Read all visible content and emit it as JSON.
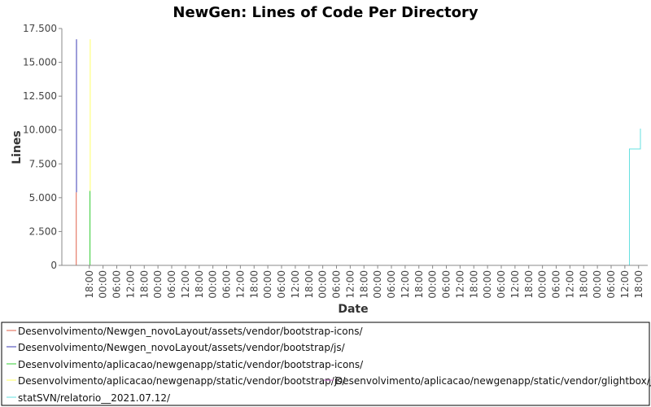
{
  "chart_data": {
    "type": "line",
    "title": "NewGen: Lines of Code Per Directory",
    "xlabel": "Date",
    "ylabel": "Lines",
    "ylim": [
      0,
      17500
    ],
    "y_ticks": [
      {
        "value": 0,
        "label": "0"
      },
      {
        "value": 2500,
        "label": "2.500"
      },
      {
        "value": 5000,
        "label": "5.000"
      },
      {
        "value": 7500,
        "label": "7.500"
      },
      {
        "value": 10000,
        "label": "10.000"
      },
      {
        "value": 12500,
        "label": "12.500"
      },
      {
        "value": 15000,
        "label": "15.000"
      },
      {
        "value": 17500,
        "label": "17.500"
      }
    ],
    "x_range": [
      0,
      256
    ],
    "x_ticks": [
      {
        "x": 12,
        "label": "18:00"
      },
      {
        "x": 18,
        "label": "00:00"
      },
      {
        "x": 24,
        "label": "06:00"
      },
      {
        "x": 30,
        "label": "12:00"
      },
      {
        "x": 36,
        "label": "18:00"
      },
      {
        "x": 42,
        "label": "00:00"
      },
      {
        "x": 48,
        "label": "06:00"
      },
      {
        "x": 54,
        "label": "12:00"
      },
      {
        "x": 60,
        "label": "18:00"
      },
      {
        "x": 66,
        "label": "00:00"
      },
      {
        "x": 72,
        "label": "06:00"
      },
      {
        "x": 78,
        "label": "12:00"
      },
      {
        "x": 84,
        "label": "18:00"
      },
      {
        "x": 90,
        "label": "00:00"
      },
      {
        "x": 96,
        "label": "06:00"
      },
      {
        "x": 102,
        "label": "12:00"
      },
      {
        "x": 108,
        "label": "18:00"
      },
      {
        "x": 114,
        "label": "00:00"
      },
      {
        "x": 120,
        "label": "06:00"
      },
      {
        "x": 126,
        "label": "12:00"
      },
      {
        "x": 132,
        "label": "18:00"
      },
      {
        "x": 138,
        "label": "00:00"
      },
      {
        "x": 144,
        "label": "06:00"
      },
      {
        "x": 150,
        "label": "12:00"
      },
      {
        "x": 156,
        "label": "18:00"
      },
      {
        "x": 162,
        "label": "00:00"
      },
      {
        "x": 168,
        "label": "06:00"
      },
      {
        "x": 174,
        "label": "12:00"
      },
      {
        "x": 180,
        "label": "18:00"
      },
      {
        "x": 186,
        "label": "00:00"
      },
      {
        "x": 192,
        "label": "06:00"
      },
      {
        "x": 198,
        "label": "12:00"
      },
      {
        "x": 204,
        "label": "18:00"
      },
      {
        "x": 210,
        "label": "00:00"
      },
      {
        "x": 216,
        "label": "06:00"
      },
      {
        "x": 222,
        "label": "12:00"
      },
      {
        "x": 228,
        "label": "18:00"
      },
      {
        "x": 234,
        "label": "00:00"
      },
      {
        "x": 240,
        "label": "06:00"
      },
      {
        "x": 246,
        "label": "12:00"
      },
      {
        "x": 252,
        "label": "18:00"
      }
    ],
    "series": [
      {
        "name": "Desenvolvimento/Newgen_novoLayout/assets/vendor/bootstrap-icons/",
        "color": "#e0614a",
        "points": [
          [
            6.3,
            0
          ],
          [
            6.3,
            5400
          ],
          [
            6.3,
            5400
          ]
        ]
      },
      {
        "name": "Desenvolvimento/Newgen_novoLayout/assets/vendor/bootstrap/js/",
        "color": "#3b3bb3",
        "points": [
          [
            6.4,
            5400
          ],
          [
            6.4,
            16700
          ]
        ]
      },
      {
        "name": "Desenvolvimento/aplicacao/newgenapp/static/vendor/bootstrap-icons/",
        "color": "#33cc33",
        "points": [
          [
            12.3,
            0
          ],
          [
            12.3,
            5500
          ]
        ]
      },
      {
        "name": "Desenvolvimento/aplicacao/newgenapp/static/vendor/bootstrap/js/",
        "color": "#ffff66",
        "points": [
          [
            12.4,
            5500
          ],
          [
            12.4,
            16700
          ]
        ]
      },
      {
        "name": "Desenvolvimento/aplicacao/newgenapp/static/vendor/glightbox/js/",
        "color": "#cc66cc",
        "points": [
          [
            12.3,
            0
          ],
          [
            256,
            0
          ]
        ]
      },
      {
        "name": "statSVN/relatorio__2021.07.12/",
        "color": "#66e0e0",
        "points": [
          [
            248,
            0
          ],
          [
            248,
            8600
          ],
          [
            252.8,
            8600
          ],
          [
            252.8,
            10100
          ]
        ]
      }
    ],
    "legend_position": "bottom",
    "grid": false
  }
}
